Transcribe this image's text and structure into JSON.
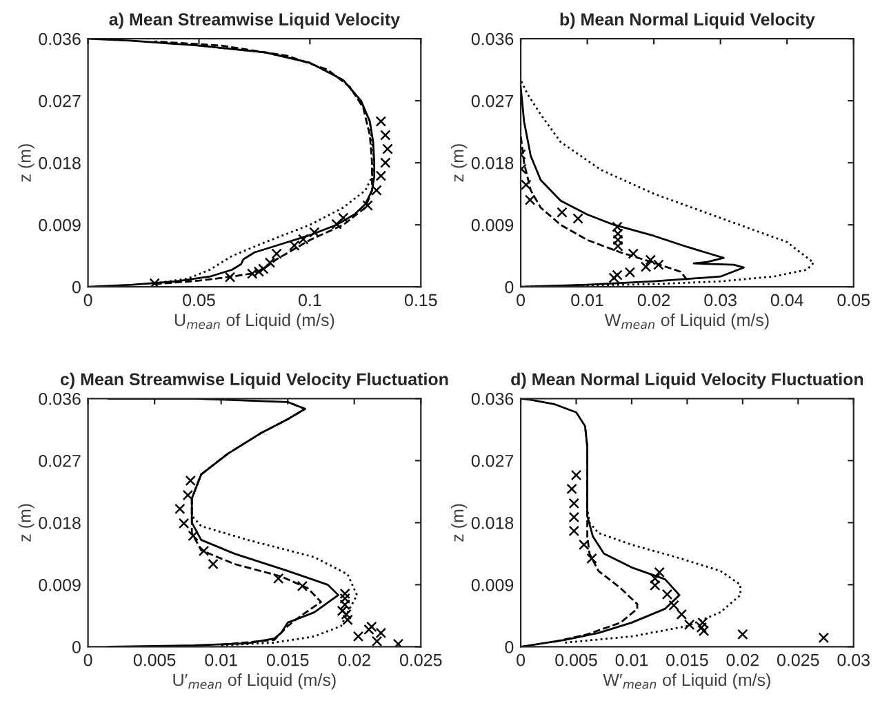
{
  "chart_data": [
    {
      "type": "line",
      "title": "a) Mean Streamwise Liquid Velocity",
      "xlabel": "U$_{mean}$ of Liquid (m/s)",
      "ylabel": "z (m)",
      "xlim": [
        0,
        0.15
      ],
      "xticks": [
        0,
        0.05,
        0.1,
        0.15
      ],
      "ylim": [
        0,
        0.036
      ],
      "yticks": [
        0,
        0.009,
        0.018,
        0.027,
        0.036
      ],
      "grid": false,
      "series": [
        {
          "type": "line",
          "line_style": "solid",
          "color": "#000000",
          "x": [
            0,
            0.02,
            0.04,
            0.055,
            0.065,
            0.069,
            0.07,
            0.075,
            0.085,
            0.1,
            0.112,
            0.12,
            0.125,
            0.128,
            0.129,
            0.129,
            0.1285,
            0.127,
            0.123,
            0.115,
            0.1,
            0.08,
            0.05,
            0.02,
            0
          ],
          "values": [
            0,
            0.0003,
            0.0008,
            0.0015,
            0.0025,
            0.0033,
            0.004,
            0.005,
            0.006,
            0.0075,
            0.009,
            0.0105,
            0.012,
            0.014,
            0.016,
            0.018,
            0.021,
            0.024,
            0.027,
            0.03,
            0.0325,
            0.034,
            0.035,
            0.0357,
            0.036
          ]
        },
        {
          "line_style": "dashed",
          "color": "#000000",
          "x": [
            0.03,
            0.05,
            0.065,
            0.075,
            0.08,
            0.085,
            0.093,
            0.1,
            0.115,
            0.125,
            0.128,
            0.128,
            0.127,
            0.124,
            0.118,
            0.108,
            0.09,
            0.06,
            0.03
          ],
          "values": [
            0.0004,
            0.0009,
            0.0015,
            0.002,
            0.0028,
            0.004,
            0.0055,
            0.0068,
            0.009,
            0.0115,
            0.014,
            0.018,
            0.022,
            0.026,
            0.029,
            0.0315,
            0.0335,
            0.035,
            0.0356
          ]
        },
        {
          "line_style": "dotted",
          "color": "#000000",
          "x": [
            0.03,
            0.045,
            0.055,
            0.065,
            0.08,
            0.1,
            0.115,
            0.125,
            0.128,
            0.129,
            0.128,
            0.127,
            0.123,
            0.115,
            0.1,
            0.08,
            0.05
          ],
          "values": [
            0.0005,
            0.0012,
            0.0025,
            0.0045,
            0.0065,
            0.009,
            0.0115,
            0.014,
            0.016,
            0.018,
            0.021,
            0.024,
            0.027,
            0.03,
            0.0325,
            0.034,
            0.035
          ]
        },
        {
          "type": "scatter",
          "marker": "cross",
          "color": "#000000",
          "x": [
            0.03,
            0.064,
            0.074,
            0.077,
            0.079,
            0.082,
            0.085,
            0.093,
            0.097,
            0.102,
            0.112,
            0.115,
            0.126,
            0.13,
            0.132,
            0.134,
            0.135,
            0.134,
            0.132
          ],
          "values": [
            0.0005,
            0.0014,
            0.0019,
            0.0022,
            0.0026,
            0.0035,
            0.0048,
            0.006,
            0.0069,
            0.0079,
            0.0091,
            0.01,
            0.0118,
            0.014,
            0.0161,
            0.018,
            0.02,
            0.022,
            0.024
          ]
        }
      ]
    },
    {
      "type": "line",
      "title": "b) Mean Normal Liquid Velocity",
      "xlabel": "W$_{mean}$ of Liquid (m/s)",
      "ylabel": "z (m)",
      "xlim": [
        0,
        0.05
      ],
      "xticks": [
        0,
        0.01,
        0.02,
        0.03,
        0.04,
        0.05
      ],
      "ylim": [
        0,
        0.036
      ],
      "yticks": [
        0,
        0.009,
        0.018,
        0.027,
        0.036
      ],
      "grid": false,
      "series": [
        {
          "type": "line",
          "line_style": "solid",
          "color": "#000000",
          "x": [
            0,
            0.01,
            0.02,
            0.03,
            0.0335,
            0.032,
            0.026,
            0.028,
            0.0305,
            0.025,
            0.02,
            0.014,
            0.01,
            0.006,
            0.003,
            0.0015,
            0.0005,
            0
          ],
          "values": [
            0,
            0.0003,
            0.0008,
            0.0015,
            0.0028,
            0.0032,
            0.0034,
            0.0036,
            0.0042,
            0.0058,
            0.0074,
            0.009,
            0.0105,
            0.0125,
            0.0155,
            0.019,
            0.024,
            0.029
          ]
        },
        {
          "type": "line",
          "line_style": "dashed",
          "color": "#000000",
          "x": [
            0.025,
            0.024,
            0.02,
            0.015,
            0.01,
            0.006,
            0.003,
            0.0015,
            0.0005,
            0
          ],
          "values": [
            0.001,
            0.0022,
            0.0035,
            0.005,
            0.0068,
            0.009,
            0.0115,
            0.014,
            0.018,
            0.022
          ]
        },
        {
          "type": "line",
          "line_style": "dotted",
          "color": "#000000",
          "x": [
            0,
            0.02,
            0.03,
            0.038,
            0.043,
            0.044,
            0.042,
            0.04,
            0.03,
            0.02,
            0.012,
            0.006,
            0.003,
            0.001,
            0
          ],
          "values": [
            0,
            0.0004,
            0.0008,
            0.0015,
            0.0025,
            0.0035,
            0.005,
            0.0065,
            0.01,
            0.0135,
            0.017,
            0.021,
            0.025,
            0.028,
            0.03
          ]
        },
        {
          "type": "scatter",
          "marker": "cross",
          "color": "#000000",
          "x": [
            0,
            0.0001,
            0.0008,
            0.0014,
            0.0062,
            0.0086,
            0.0145,
            0.0146,
            0.0146,
            0.0146,
            0.0169,
            0.0195,
            0.0207,
            0.0188,
            0.0164,
            0.0145,
            0.014
          ],
          "values": [
            0.0192,
            0.0171,
            0.0148,
            0.0126,
            0.0108,
            0.0099,
            0.0087,
            0.0077,
            0.0068,
            0.0059,
            0.0048,
            0.0039,
            0.0032,
            0.0029,
            0.0021,
            0.0017,
            0.0013
          ]
        }
      ]
    },
    {
      "type": "line",
      "title": "c) Mean Streamwise Liquid Velocity Fluctuation",
      "xlabel": "U′$_{mean}$ of Liquid (m/s)",
      "ylabel": "z (m)",
      "xlim": [
        0,
        0.025
      ],
      "xticks": [
        0,
        0.005,
        0.01,
        0.015,
        0.02,
        0.025
      ],
      "ylim": [
        0,
        0.036
      ],
      "yticks": [
        0,
        0.009,
        0.018,
        0.027,
        0.036
      ],
      "grid": false,
      "series": [
        {
          "type": "line",
          "line_style": "solid",
          "color": "#000000",
          "x": [
            0.0015,
            0.008,
            0.012,
            0.014,
            0.0145,
            0.015,
            0.017,
            0.0188,
            0.018,
            0.015,
            0.011,
            0.0085,
            0.0078,
            0.0078,
            0.0085,
            0.0105,
            0.013,
            0.015,
            0.0163,
            0.015,
            0.008,
            0.0015
          ],
          "values": [
            0,
            0.0002,
            0.0005,
            0.0012,
            0.002,
            0.0035,
            0.005,
            0.0075,
            0.009,
            0.011,
            0.0135,
            0.0155,
            0.018,
            0.0215,
            0.025,
            0.028,
            0.031,
            0.033,
            0.0345,
            0.0355,
            0.036,
            0.036
          ]
        },
        {
          "line_style": "dashed",
          "color": "#000000",
          "x": [
            0.01,
            0.014,
            0.0145,
            0.015,
            0.016,
            0.0175,
            0.0165,
            0.0145,
            0.011,
            0.0085,
            0.0078,
            0.0078,
            0.0085,
            0.0105,
            0.013,
            0.015,
            0.0163,
            0.015
          ],
          "values": [
            0.0003,
            0.001,
            0.002,
            0.003,
            0.0045,
            0.0065,
            0.0085,
            0.0102,
            0.012,
            0.014,
            0.0165,
            0.0215,
            0.025,
            0.028,
            0.031,
            0.033,
            0.0345,
            0.0355
          ]
        },
        {
          "line_style": "dotted",
          "color": "#000000",
          "x": [
            0.01,
            0.014,
            0.017,
            0.019,
            0.0195,
            0.0202,
            0.0195,
            0.017,
            0.012,
            0.0085,
            0.0078,
            0.0078,
            0.0085,
            0.0105
          ],
          "values": [
            0.0002,
            0.0006,
            0.0015,
            0.003,
            0.005,
            0.0075,
            0.0105,
            0.013,
            0.0155,
            0.0175,
            0.019,
            0.0215,
            0.025,
            0.028
          ]
        },
        {
          "type": "scatter",
          "marker": "cross",
          "color": "#000000",
          "x": [
            0.0077,
            0.0075,
            0.0069,
            0.0072,
            0.0079,
            0.0087,
            0.0094,
            0.0143,
            0.0161,
            0.0193,
            0.0193,
            0.0193,
            0.0191,
            0.0194,
            0.0195,
            0.0203,
            0.0211,
            0.0213,
            0.022,
            0.0217,
            0.0233
          ],
          "values": [
            0.0241,
            0.022,
            0.02,
            0.0179,
            0.0161,
            0.0139,
            0.012,
            0.0099,
            0.0088,
            0.0077,
            0.007,
            0.0061,
            0.0052,
            0.0047,
            0.0039,
            0.0015,
            0.0025,
            0.0029,
            0.002,
            0.0008,
            0.0004
          ]
        }
      ]
    },
    {
      "type": "line",
      "title": "d) Mean Normal Liquid Velocity Fluctuation",
      "xlabel": "W′$_{mean}$ of Liquid (m/s)",
      "ylabel": "z (m)",
      "xlim": [
        0,
        0.03
      ],
      "xticks": [
        0,
        0.005,
        0.01,
        0.015,
        0.02,
        0.025,
        0.03
      ],
      "ylim": [
        0,
        0.036
      ],
      "yticks": [
        0,
        0.009,
        0.018,
        0.027,
        0.036
      ],
      "grid": false,
      "series": [
        {
          "type": "line",
          "line_style": "solid",
          "color": "#000000",
          "x": [
            0,
            0.002,
            0.004,
            0.007,
            0.01,
            0.013,
            0.0143,
            0.013,
            0.01,
            0.0075,
            0.0065,
            0.006,
            0.006,
            0.006,
            0.0058,
            0.005,
            0.003,
            0.001,
            0
          ],
          "values": [
            0,
            0.0005,
            0.001,
            0.002,
            0.0035,
            0.0055,
            0.0075,
            0.0098,
            0.0115,
            0.0135,
            0.016,
            0.019,
            0.024,
            0.029,
            0.032,
            0.034,
            0.0352,
            0.0358,
            0.036
          ]
        },
        {
          "line_style": "dashed",
          "color": "#000000",
          "x": [
            0.003,
            0.006,
            0.009,
            0.0105,
            0.0105,
            0.009,
            0.007,
            0.0062,
            0.006,
            0.006,
            0.006,
            0.006,
            0.0058
          ],
          "values": [
            0.0007,
            0.0018,
            0.0035,
            0.0055,
            0.0062,
            0.0085,
            0.011,
            0.0135,
            0.016,
            0.019,
            0.024,
            0.029,
            0.032
          ]
        },
        {
          "line_style": "dotted",
          "color": "#000000",
          "x": [
            0.004,
            0.01,
            0.015,
            0.018,
            0.0198,
            0.0198,
            0.018,
            0.014,
            0.01,
            0.007,
            0.0062,
            0.006,
            0.006
          ],
          "values": [
            0.0006,
            0.0015,
            0.003,
            0.005,
            0.0075,
            0.009,
            0.011,
            0.013,
            0.0148,
            0.0165,
            0.018,
            0.02,
            0.024
          ]
        },
        {
          "type": "scatter",
          "marker": "cross",
          "color": "#000000",
          "x": [
            0.005,
            0.0046,
            0.0048,
            0.0048,
            0.0048,
            0.0057,
            0.0064,
            0.0125,
            0.0121,
            0.0121,
            0.0132,
            0.0138,
            0.0145,
            0.0152,
            0.0164,
            0.0163,
            0.0165,
            0.02,
            0.0273
          ],
          "values": [
            0.0249,
            0.0229,
            0.0208,
            0.0188,
            0.0168,
            0.0148,
            0.0128,
            0.0108,
            0.0099,
            0.0089,
            0.0076,
            0.006,
            0.0047,
            0.0032,
            0.0035,
            0.0028,
            0.0023,
            0.0018,
            0.0013
          ]
        }
      ]
    }
  ]
}
